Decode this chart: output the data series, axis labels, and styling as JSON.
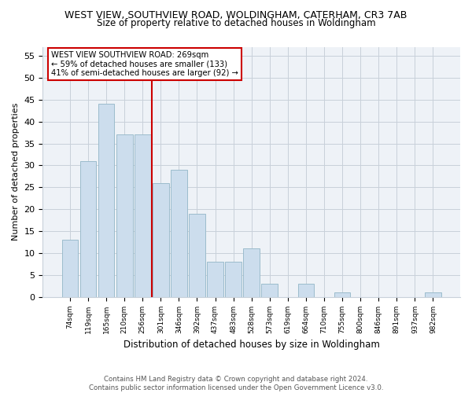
{
  "title": "WEST VIEW, SOUTHVIEW ROAD, WOLDINGHAM, CATERHAM, CR3 7AB",
  "subtitle": "Size of property relative to detached houses in Woldingham",
  "xlabel": "Distribution of detached houses by size in Woldingham",
  "ylabel": "Number of detached properties",
  "bar_color": "#ccdded",
  "bar_edge_color": "#9bbccc",
  "categories": [
    "74sqm",
    "119sqm",
    "165sqm",
    "210sqm",
    "256sqm",
    "301sqm",
    "346sqm",
    "392sqm",
    "437sqm",
    "483sqm",
    "528sqm",
    "573sqm",
    "619sqm",
    "664sqm",
    "710sqm",
    "755sqm",
    "800sqm",
    "846sqm",
    "891sqm",
    "937sqm",
    "982sqm"
  ],
  "values": [
    13,
    31,
    44,
    37,
    37,
    26,
    29,
    19,
    8,
    8,
    11,
    3,
    0,
    3,
    0,
    1,
    0,
    0,
    0,
    0,
    1
  ],
  "ylim": [
    0,
    57
  ],
  "yticks": [
    0,
    5,
    10,
    15,
    20,
    25,
    30,
    35,
    40,
    45,
    50,
    55
  ],
  "property_line_x": 4.5,
  "property_line_color": "#cc0000",
  "annotation_line1": "WEST VIEW SOUTHVIEW ROAD: 269sqm",
  "annotation_line2": "← 59% of detached houses are smaller (133)",
  "annotation_line3": "41% of semi-detached houses are larger (92) →",
  "annotation_box_color": "#ffffff",
  "annotation_box_edge": "#cc0000",
  "footer_line1": "Contains HM Land Registry data © Crown copyright and database right 2024.",
  "footer_line2": "Contains public sector information licensed under the Open Government Licence v3.0.",
  "background_color": "#eef2f7",
  "grid_color": "#c8d0da"
}
